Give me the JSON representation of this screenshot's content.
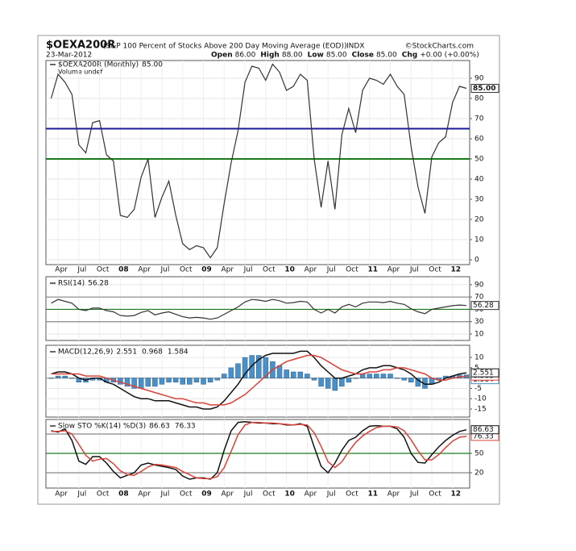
{
  "header": {
    "symbol": "$OEXA200R",
    "description": "(S&P 100 Percent of Stocks Above 200 Day Moving Average (EOD))",
    "exchange": "INDX",
    "source": "©StockCharts.com",
    "date": "23-Mar-2012",
    "quote": [
      {
        "label": "Open",
        "value": "86.00"
      },
      {
        "label": "High",
        "value": "88.00"
      },
      {
        "label": "Low",
        "value": "85.00"
      },
      {
        "label": "Close",
        "value": "85.00"
      },
      {
        "label": "Chg",
        "value": "+0.00 (+0.00%)"
      }
    ]
  },
  "chart_data": [
    {
      "type": "line",
      "legend_title": "$OEXA200R (Monthly)",
      "volume_label": "Volume undef",
      "categories": [
        null,
        "Apr",
        null,
        null,
        "Jul",
        null,
        null,
        "Oct",
        null,
        null,
        "08",
        null,
        null,
        "Apr",
        null,
        null,
        "Jul",
        null,
        null,
        "Oct",
        null,
        null,
        "09",
        null,
        null,
        "Apr",
        null,
        null,
        "Jul",
        null,
        null,
        "Oct",
        null,
        null,
        "10",
        null,
        null,
        "Apr",
        null,
        null,
        "Jul",
        null,
        null,
        "Oct",
        null,
        null,
        "11",
        null,
        null,
        "Apr",
        null,
        null,
        "Jul",
        null,
        null,
        "Oct",
        null,
        null,
        "12",
        null,
        null
      ],
      "series": [
        {
          "name": "85.00",
          "color": "#333333",
          "values": [
            80,
            92,
            88,
            82,
            57,
            53,
            68,
            69,
            52,
            49,
            22,
            21,
            25,
            41,
            50,
            21,
            31,
            39,
            22,
            8,
            5,
            7,
            6,
            1,
            6,
            28,
            48,
            64,
            88,
            96,
            95,
            89,
            97,
            93,
            84,
            86,
            92,
            89,
            50,
            26,
            49,
            25,
            62,
            75,
            63,
            84,
            90,
            89,
            87,
            92,
            86,
            82,
            56,
            36,
            23,
            51,
            58,
            61,
            78,
            86,
            85
          ]
        }
      ],
      "reference_lines": [
        {
          "value": 65,
          "color": "#1c1c9a"
        },
        {
          "value": 50,
          "color": "#1a7a1a"
        }
      ],
      "ylim": [
        -2.4,
        98.8
      ],
      "yticks": [
        0,
        10,
        20,
        30,
        40,
        50,
        60,
        70,
        80,
        90
      ]
    },
    {
      "type": "line",
      "legend_title": "RSI(14)",
      "series": [
        {
          "name": "56.28",
          "color": "#333333",
          "values": [
            60,
            66,
            63,
            60,
            50,
            48,
            52,
            52,
            48,
            46,
            40,
            39,
            40,
            45,
            48,
            41,
            44,
            46,
            42,
            38,
            36,
            37,
            36,
            34,
            36,
            42,
            48,
            54,
            62,
            66,
            65,
            63,
            66,
            64,
            60,
            61,
            63,
            62,
            50,
            44,
            50,
            44,
            54,
            58,
            54,
            60,
            62,
            62,
            61,
            63,
            60,
            58,
            51,
            46,
            43,
            50,
            52,
            54,
            56,
            57,
            56.28
          ]
        }
      ],
      "reference_lines": [
        {
          "value": 70,
          "color": "#888888"
        },
        {
          "value": 30,
          "color": "#888888"
        },
        {
          "value": 50,
          "color": "#1a7a1a"
        }
      ],
      "ylim": [
        -0.5,
        103
      ],
      "yticks": [
        10,
        30,
        50,
        70,
        90
      ]
    },
    {
      "type": "line",
      "legend_title": "MACD(12,26,9)",
      "series": [
        {
          "name": "2.551",
          "color": "#111111",
          "values": [
            2,
            3,
            3,
            2,
            0,
            -1,
            0,
            0,
            -2,
            -3,
            -5,
            -7,
            -9,
            -10,
            -10,
            -11,
            -11,
            -11,
            -12,
            -13,
            -14,
            -14,
            -15,
            -15,
            -14,
            -11,
            -7,
            -3,
            2,
            6,
            9,
            11,
            12,
            12,
            12,
            12,
            13,
            13,
            10,
            6,
            3,
            0,
            0,
            1,
            2,
            4,
            5,
            5,
            6,
            6,
            5,
            4,
            2,
            -1,
            -3,
            -3,
            -2,
            0,
            1,
            2,
            2.551
          ]
        },
        {
          "name": "0.968",
          "color": "#d9423a",
          "values": [
            2,
            2,
            2,
            2,
            2,
            1,
            1,
            1,
            0,
            -1,
            -2,
            -3,
            -4,
            -5,
            -6,
            -7,
            -8,
            -9,
            -10,
            -10,
            -11,
            -12,
            -12,
            -13,
            -13,
            -13,
            -12,
            -10,
            -8,
            -5,
            -2,
            1,
            4,
            6,
            8,
            9,
            10,
            11,
            11,
            10,
            8,
            6,
            4,
            3,
            2,
            2,
            3,
            3,
            4,
            4,
            5,
            5,
            4,
            3,
            2,
            0,
            -1,
            -1,
            0,
            0.5,
            0.968
          ]
        },
        {
          "name": "1.584",
          "color": "#4a90c8",
          "type": "bar",
          "values": [
            0,
            1,
            1,
            0,
            -2,
            -2,
            -1,
            -1,
            -2,
            -2,
            -3,
            -4,
            -5,
            -5,
            -4,
            -4,
            -3,
            -2,
            -2,
            -3,
            -3,
            -2,
            -3,
            -2,
            -1,
            2,
            5,
            7,
            10,
            11,
            11,
            10,
            8,
            6,
            4,
            3,
            3,
            2,
            -1,
            -4,
            -5,
            -6,
            -4,
            -2,
            0,
            2,
            2,
            2,
            2,
            2,
            0,
            -1,
            -2,
            -4,
            -5,
            -3,
            -1,
            1,
            1,
            1.5,
            1.584
          ]
        }
      ],
      "reference_lines": [
        {
          "value": 0,
          "color": "#999999"
        }
      ],
      "ylim": [
        -18.9,
        15.9
      ],
      "yticks": [
        10,
        5,
        0,
        -5,
        -10,
        -15
      ]
    },
    {
      "type": "line",
      "legend_title": "Slow STO %K(14) %D(3)",
      "series": [
        {
          "name": "86.63",
          "color": "#111111",
          "values": [
            85,
            83,
            88,
            70,
            38,
            33,
            45,
            45,
            35,
            22,
            12,
            16,
            20,
            32,
            35,
            32,
            30,
            28,
            25,
            15,
            10,
            12,
            12,
            10,
            20,
            55,
            85,
            98,
            99,
            98,
            97,
            97,
            96,
            96,
            94,
            94,
            96,
            92,
            60,
            30,
            20,
            35,
            55,
            70,
            75,
            85,
            92,
            93,
            92,
            92,
            88,
            75,
            50,
            36,
            35,
            48,
            60,
            70,
            78,
            84,
            86.63
          ]
        },
        {
          "name": "76.33",
          "color": "#d9423a",
          "values": [
            84,
            84,
            85,
            80,
            64,
            47,
            38,
            41,
            42,
            34,
            23,
            17,
            16,
            22,
            29,
            33,
            32,
            30,
            28,
            22,
            17,
            12,
            11,
            11,
            14,
            28,
            53,
            79,
            94,
            98,
            98,
            97,
            97,
            96,
            95,
            94,
            95,
            94,
            82,
            61,
            37,
            28,
            37,
            53,
            67,
            77,
            84,
            90,
            92,
            92,
            91,
            85,
            71,
            54,
            40,
            40,
            48,
            59,
            69,
            75,
            76.33
          ]
        }
      ],
      "reference_lines": [
        {
          "value": 80,
          "color": "#888888"
        },
        {
          "value": 20,
          "color": "#888888"
        },
        {
          "value": 50,
          "color": "#1a7a1a"
        }
      ],
      "ylim": [
        -3.75,
        102.5
      ],
      "yticks": [
        20,
        50,
        80
      ]
    }
  ]
}
